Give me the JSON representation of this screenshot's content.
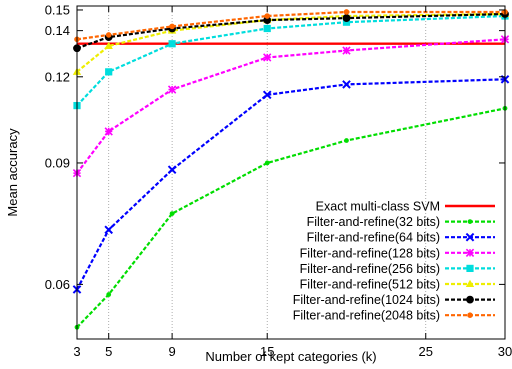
{
  "chart_data": {
    "type": "line",
    "xlabel": "Number of kept categories (k)",
    "ylabel": "Mean accuracy",
    "xlim": [
      3,
      30
    ],
    "ylim": [
      0.05,
      0.152
    ],
    "xticks": [
      3,
      5,
      9,
      15,
      25,
      30
    ],
    "yticks": [
      0.06,
      0.09,
      0.12,
      0.14,
      0.15
    ],
    "ytick_labels": [
      "0.06",
      "0.09",
      "0.12",
      "0.14",
      "0.15"
    ],
    "y_scale": "log",
    "grid": "vertical-dotted",
    "legend_position": "bottom-right",
    "x": [
      3,
      5,
      9,
      15,
      20,
      30
    ],
    "series": [
      {
        "name": "Exact multi-class SVM",
        "color": "#ff0000",
        "marker": "none",
        "values": [
          0.134,
          0.134,
          0.134,
          0.134,
          0.134,
          0.134
        ]
      },
      {
        "name": "Filter-and-refine(32 bits)",
        "color": "#00dd00",
        "marker": "dot",
        "values": [
          0.052,
          0.058,
          0.076,
          0.09,
          0.097,
          0.108
        ]
      },
      {
        "name": "Filter-and-refine(64 bits)",
        "color": "#0000ff",
        "marker": "x",
        "values": [
          0.059,
          0.072,
          0.088,
          0.113,
          0.117,
          0.119
        ]
      },
      {
        "name": "Filter-and-refine(128 bits)",
        "color": "#ff00ff",
        "marker": "star",
        "values": [
          0.087,
          0.1,
          0.115,
          0.128,
          0.131,
          0.136
        ]
      },
      {
        "name": "Filter-and-refine(256 bits)",
        "color": "#00dddd",
        "marker": "square",
        "values": [
          0.109,
          0.122,
          0.134,
          0.141,
          0.144,
          0.147
        ]
      },
      {
        "name": "Filter-and-refine(512 bits)",
        "color": "#eeee00",
        "marker": "triangle",
        "values": [
          0.122,
          0.133,
          0.14,
          0.145,
          0.147,
          0.148
        ]
      },
      {
        "name": "Filter-and-refine(1024 bits)",
        "color": "#000000",
        "marker": "circle",
        "values": [
          0.132,
          0.137,
          0.141,
          0.145,
          0.146,
          0.148
        ]
      },
      {
        "name": "Filter-and-refine(2048 bits)",
        "color": "#ff6600",
        "marker": "circle-dot",
        "values": [
          0.136,
          0.138,
          0.142,
          0.147,
          0.149,
          0.149
        ]
      }
    ]
  }
}
